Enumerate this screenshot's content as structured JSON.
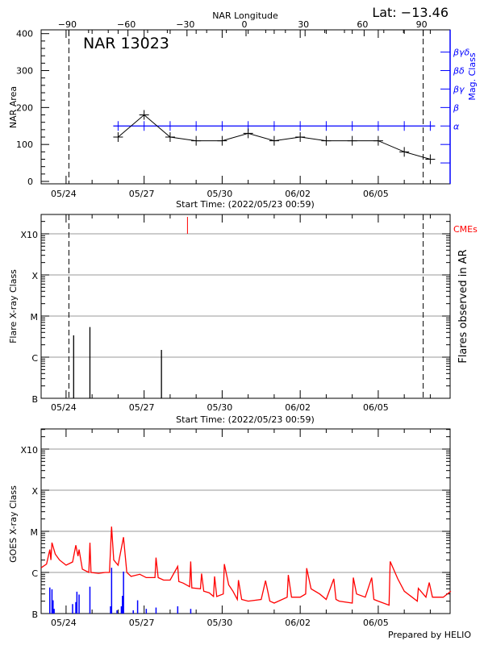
{
  "header": {
    "lat_label": "Lat: −13.46"
  },
  "chart_data": [
    {
      "type": "line",
      "title": "NAR 13023",
      "ylabel": "NAR Area",
      "ylim": [
        0,
        400
      ],
      "yticks": [
        "0",
        "100",
        "200",
        "300",
        "400"
      ],
      "xlabel": "Start Time: (2022/05/23 00:59)",
      "xticks": [
        "05/24",
        "05/27",
        "05/30",
        "06/02",
        "06/05"
      ],
      "top_axis": {
        "label": "NAR Longitude",
        "ticks": [
          "-90",
          "-60",
          "-30",
          "0",
          "30",
          "60",
          "90"
        ],
        "dashed_at": [
          -90,
          90
        ]
      },
      "right_axis": {
        "label": "Mag. Class",
        "color": "#0000ff",
        "classes": [
          {
            "area_level": 150,
            "label": "α"
          },
          {
            "area_level": 200,
            "label": "β"
          },
          {
            "area_level": 250,
            "label": "βγ"
          },
          {
            "area_level": 300,
            "label": "βδ"
          },
          {
            "area_level": 350,
            "label": "βγδ"
          }
        ],
        "extra_ticks": [
          50,
          100
        ]
      },
      "series": [
        {
          "color": "#000000",
          "x": [
            "05/26",
            "05/27",
            "05/28",
            "05/29",
            "05/30",
            "05/31",
            "06/01",
            "06/02",
            "06/03",
            "06/04",
            "06/05",
            "06/06",
            "06/07"
          ],
          "values": [
            120,
            180,
            120,
            110,
            110,
            130,
            110,
            120,
            110,
            110,
            110,
            80,
            60
          ]
        },
        {
          "color": "#0000ff",
          "x": [
            "05/26",
            "05/27",
            "05/28",
            "05/29",
            "05/30",
            "05/31",
            "06/01",
            "06/02",
            "06/03",
            "06/04",
            "06/05",
            "06/06",
            "06/07"
          ],
          "mag_class": [
            "α",
            "α",
            "α",
            "α",
            "α",
            "α",
            "α",
            "α",
            "α",
            "α",
            "α",
            "α",
            "α"
          ]
        }
      ]
    },
    {
      "type": "bar",
      "ylabel": "Flare X-ray Class",
      "right_label": "Flares observed in AR",
      "cme_label": "CMEs",
      "cme_color": "#ff0000",
      "yticks": [
        "B",
        "C",
        "M",
        "X",
        "X10"
      ],
      "yscale": "log",
      "xlabel": "Start Time: (2022/05/23 00:59)",
      "xticks": [
        "05/24",
        "05/27",
        "05/30",
        "06/02",
        "06/05"
      ],
      "grid": true,
      "flares": [
        {
          "time": "05/24 07",
          "class": "C3.4"
        },
        {
          "time": "05/24 22",
          "class": "C5.4"
        },
        {
          "time": "05/27 16",
          "class": "C1.5"
        }
      ],
      "cmes": [
        {
          "time": "05/28 16"
        }
      ]
    },
    {
      "type": "line",
      "ylabel": "GOES X-ray Class",
      "yticks": [
        "B",
        "C",
        "M",
        "X",
        "X10"
      ],
      "yscale": "log",
      "xticks": [
        "05/24",
        "05/27",
        "05/30",
        "06/02",
        "06/05"
      ],
      "grid": true,
      "series": [
        {
          "color": "#ff0000",
          "points": [
            [
              "05/23 01",
              1.3e-06
            ],
            [
              "05/23 06",
              1.6e-06
            ],
            [
              "05/23 09",
              3.6e-06
            ],
            [
              "05/23 10",
              2e-06
            ],
            [
              "05/23 11",
              5.3e-06
            ],
            [
              "05/23 14",
              2.8e-06
            ],
            [
              "05/23 18",
              2e-06
            ],
            [
              "05/24 00",
              1.5e-06
            ],
            [
              "05/24 06",
              1.8e-06
            ],
            [
              "05/24 09",
              4.6e-06
            ],
            [
              "05/24 11",
              2.5e-06
            ],
            [
              "05/24 12",
              3.6e-06
            ],
            [
              "05/24 15",
              1.2e-06
            ],
            [
              "05/24 21",
              1e-06
            ],
            [
              "05/24 22",
              5.3e-06
            ],
            [
              "05/24 23",
              1e-06
            ],
            [
              "05/25 06",
              9.5e-07
            ],
            [
              "05/25 12",
              1e-06
            ],
            [
              "05/25 16",
              1e-06
            ],
            [
              "05/25 18",
              1.3e-05
            ],
            [
              "05/25 20",
              2e-06
            ],
            [
              "05/26 00",
              1.5e-06
            ],
            [
              "05/26 05",
              7.2e-06
            ],
            [
              "05/26 08",
              1e-06
            ],
            [
              "05/26 12",
              8e-07
            ],
            [
              "05/26 20",
              9e-07
            ],
            [
              "05/27 02",
              7.5e-07
            ],
            [
              "05/27 10",
              7.5e-07
            ],
            [
              "05/27 11",
              2.3e-06
            ],
            [
              "05/27 13",
              7.5e-07
            ],
            [
              "05/27 18",
              6.5e-07
            ],
            [
              "05/28 00",
              6.5e-07
            ],
            [
              "05/28 07",
              1.4e-06
            ],
            [
              "05/28 08",
              6e-07
            ],
            [
              "05/28 12",
              5.5e-07
            ],
            [
              "05/28 18",
              4.5e-07
            ],
            [
              "05/28 19",
              1.85e-06
            ],
            [
              "05/28 20",
              4.2e-07
            ],
            [
              "05/29 04",
              4e-07
            ],
            [
              "05/29 05",
              9.4e-07
            ],
            [
              "05/29 07",
              3.5e-07
            ],
            [
              "05/29 12",
              3.2e-07
            ],
            [
              "05/29 16",
              2.6e-07
            ],
            [
              "05/29 17",
              8e-07
            ],
            [
              "05/29 19",
              2.6e-07
            ],
            [
              "05/30 01",
              3e-07
            ],
            [
              "05/30 02",
              1.6e-06
            ],
            [
              "05/30 06",
              5e-07
            ],
            [
              "05/30 10",
              3.5e-07
            ],
            [
              "05/30 14",
              2.2e-07
            ],
            [
              "05/30 15",
              6.5e-07
            ],
            [
              "05/30 18",
              2.2e-07
            ],
            [
              "05/31 00",
              2e-07
            ],
            [
              "05/31 12",
              2.2e-07
            ],
            [
              "05/31 16",
              6.3e-07
            ],
            [
              "05/31 20",
              2e-07
            ],
            [
              "06/01 00",
              1.8e-07
            ],
            [
              "06/01 12",
              2.5e-07
            ],
            [
              "06/01 13",
              8.7e-07
            ],
            [
              "06/01 16",
              2.5e-07
            ],
            [
              "06/02 00",
              2.5e-07
            ],
            [
              "06/02 05",
              3e-07
            ],
            [
              "06/02 06",
              1.27e-06
            ],
            [
              "06/02 10",
              4e-07
            ],
            [
              "06/02 18",
              3e-07
            ],
            [
              "06/03 00",
              2.2e-07
            ],
            [
              "06/03 07",
              7e-07
            ],
            [
              "06/03 09",
              2.2e-07
            ],
            [
              "06/03 12",
              2e-07
            ],
            [
              "06/04 00",
              1.8e-07
            ],
            [
              "06/04 01",
              7.5e-07
            ],
            [
              "06/04 04",
              3e-07
            ],
            [
              "06/04 12",
              2.5e-07
            ],
            [
              "06/04 18",
              7.5e-07
            ],
            [
              "06/04 20",
              2.2e-07
            ],
            [
              "06/05 00",
              2e-07
            ],
            [
              "06/05 10",
              1.6e-07
            ],
            [
              "06/05 11",
              1.85e-06
            ],
            [
              "06/05 18",
              7e-07
            ],
            [
              "06/06 00",
              3.5e-07
            ],
            [
              "06/06 12",
              2e-07
            ],
            [
              "06/06 13",
              4.1e-07
            ],
            [
              "06/06 20",
              2.5e-07
            ],
            [
              "06/06 23",
              5.7e-07
            ],
            [
              "06/07 02",
              2.5e-07
            ],
            [
              "06/07 12",
              2.5e-07
            ],
            [
              "06/07 19",
              3.5e-07
            ]
          ]
        },
        {
          "color": "#0000ff",
          "bars": [
            [
              "05/23 09",
              4.3e-07
            ],
            [
              "05/23 11",
              3.9e-07
            ],
            [
              "05/23 12",
              2.1e-07
            ],
            [
              "05/23 13",
              1.3e-07
            ],
            [
              "05/24 06",
              1.7e-07
            ],
            [
              "05/24 09",
              1.9e-07
            ],
            [
              "05/24 10",
              3.4e-07
            ],
            [
              "05/24 12",
              2.9e-07
            ],
            [
              "05/24 22",
              4.5e-07
            ],
            [
              "05/25 17",
              1.5e-07
            ],
            [
              "05/25 18",
              1.3e-06
            ],
            [
              "05/25 23",
              1.2e-07
            ],
            [
              "05/26 03",
              1.5e-07
            ],
            [
              "05/26 04",
              2.7e-07
            ],
            [
              "05/26 05",
              1.05e-06
            ],
            [
              "05/26 14",
              1.2e-07
            ],
            [
              "05/26 18",
              2.1e-07
            ],
            [
              "05/27 02",
              1.3e-07
            ],
            [
              "05/27 11",
              1.4e-07
            ],
            [
              "05/28 07",
              1.5e-07
            ],
            [
              "05/28 19",
              1.3e-07
            ]
          ]
        }
      ]
    }
  ],
  "footer": {
    "credit": "Prepared by HELIO"
  }
}
